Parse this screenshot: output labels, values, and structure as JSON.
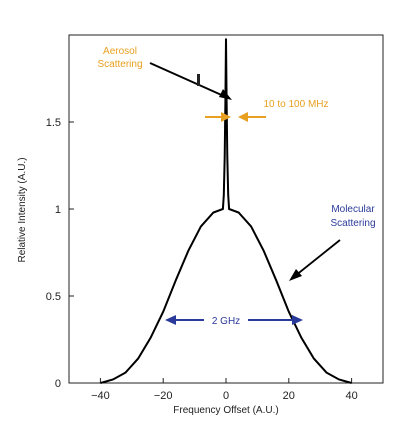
{
  "chart_data": {
    "type": "line",
    "title": "",
    "xlabel": "Frequency Offset (A.U.)",
    "ylabel": "Relative Intensity (A.U.)",
    "xlim": [
      -50,
      50
    ],
    "ylim": [
      0,
      2.0
    ],
    "x_ticks": [
      -40,
      -20,
      0,
      20,
      40
    ],
    "x_tick_labels": [
      "−40",
      "−20",
      "0",
      "20",
      "40"
    ],
    "y_ticks": [
      0,
      0.5,
      1,
      1.5
    ],
    "y_tick_labels": [
      "0",
      "0.5",
      "1",
      "1.5"
    ],
    "grid": false,
    "series": [
      {
        "color": "#000000",
        "x": [
          -40,
          -36,
          -32,
          -28,
          -24,
          -20,
          -16,
          -12,
          -8,
          -4,
          -1,
          -0.7,
          -0.4,
          -0.2,
          0,
          0.2,
          0.4,
          0.7,
          1,
          4,
          8,
          12,
          16,
          20,
          24,
          28,
          32,
          36,
          40
        ],
        "y": [
          0,
          0.02,
          0.06,
          0.14,
          0.26,
          0.41,
          0.59,
          0.76,
          0.9,
          0.98,
          1.0,
          1.08,
          1.3,
          1.62,
          1.98,
          1.62,
          1.3,
          1.08,
          1.0,
          0.98,
          0.9,
          0.76,
          0.59,
          0.41,
          0.26,
          0.14,
          0.06,
          0.02,
          0
        ]
      }
    ],
    "annotations": [
      {
        "text": "Aerosol",
        "color": "#e8a020"
      },
      {
        "text": "Scattering",
        "color": "#e8a020"
      },
      {
        "text": "10 to 100 MHz",
        "color": "#e8a020"
      },
      {
        "text": "Molecular",
        "color": "#2a3a9a"
      },
      {
        "text": "Scattering",
        "color": "#2a3a9a"
      },
      {
        "text": "2 GHz",
        "color": "#2a3a9a"
      }
    ]
  }
}
